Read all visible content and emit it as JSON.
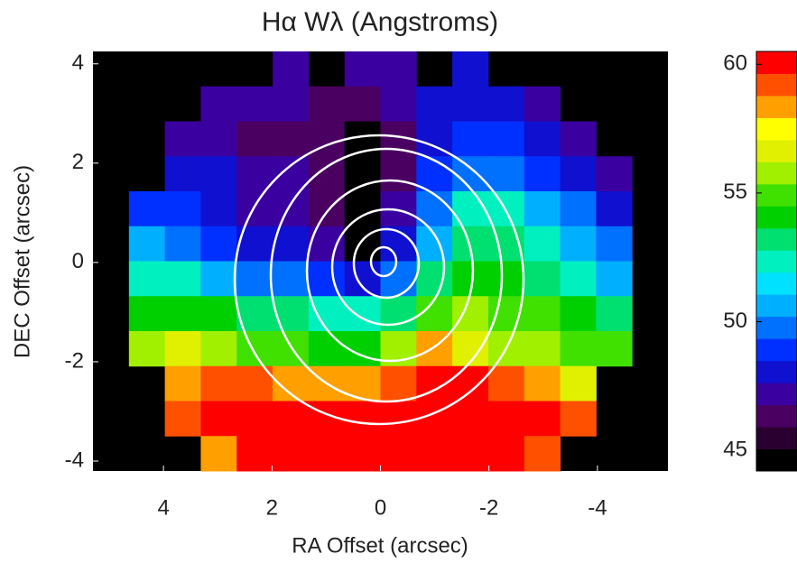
{
  "chart_data": {
    "type": "heatmap",
    "title": "Hα Wλ (Angstroms)",
    "x_label": "RA Offset (arcsec)",
    "y_label": "DEC Offset (arcsec)",
    "xlim": [
      5.3,
      -5.3
    ],
    "ylim": [
      -4.2,
      4.25
    ],
    "xticks": [
      4,
      2,
      0,
      -2,
      -4
    ],
    "yticks": [
      -4,
      -2,
      0,
      2,
      4
    ],
    "clim": [
      44.2,
      60.5
    ],
    "cticks": [
      45,
      50,
      55,
      60
    ],
    "colormap": [
      "#000000",
      "#2a0030",
      "#4a0060",
      "#3a00a0",
      "#1010d0",
      "#0030ff",
      "#0070ff",
      "#00b0ff",
      "#00e0ff",
      "#00f0c0",
      "#00e070",
      "#00d000",
      "#40e000",
      "#a0f000",
      "#e0f000",
      "#ffff00",
      "#ffa000",
      "#ff5000",
      "#ff0000"
    ],
    "z": [
      [
        null,
        null,
        null,
        null,
        null,
        47,
        null,
        47,
        47,
        null,
        48,
        null,
        null,
        null,
        null,
        null
      ],
      [
        null,
        null,
        null,
        47,
        47,
        47,
        46,
        46,
        47,
        48,
        48,
        48,
        47,
        null,
        null,
        null
      ],
      [
        null,
        null,
        47,
        47,
        46,
        46,
        46,
        45,
        46,
        48,
        49,
        49,
        48,
        47,
        null,
        null
      ],
      [
        null,
        null,
        48,
        48,
        47,
        47,
        46,
        45,
        46,
        49,
        50,
        50,
        49,
        48,
        47,
        null
      ],
      [
        null,
        49,
        49,
        48,
        47,
        47,
        46,
        45,
        47,
        50,
        52,
        52,
        51,
        50,
        48,
        null
      ],
      [
        null,
        51,
        50,
        49,
        48,
        48,
        47,
        45,
        48,
        51,
        53,
        53,
        52,
        51,
        50,
        null
      ],
      [
        null,
        52,
        52,
        51,
        50,
        50,
        49,
        48,
        50,
        53,
        54,
        54,
        53,
        52,
        51,
        null
      ],
      [
        null,
        54,
        54,
        54,
        53,
        53,
        52,
        52,
        53,
        55,
        56,
        55,
        55,
        54,
        53,
        null
      ],
      [
        null,
        56,
        57,
        56,
        55,
        55,
        54,
        54,
        56,
        58,
        57,
        56,
        56,
        55,
        55,
        null
      ],
      [
        null,
        null,
        58,
        59,
        59,
        58,
        58,
        58,
        59,
        60,
        60,
        59,
        58,
        57,
        null,
        null
      ],
      [
        null,
        null,
        59,
        60,
        60,
        60,
        60,
        60,
        60,
        60,
        60,
        60,
        60,
        59,
        null,
        null
      ],
      [
        null,
        null,
        null,
        58,
        60,
        60,
        60,
        60,
        60,
        60,
        60,
        60,
        59,
        null,
        null,
        null
      ]
    ]
  }
}
